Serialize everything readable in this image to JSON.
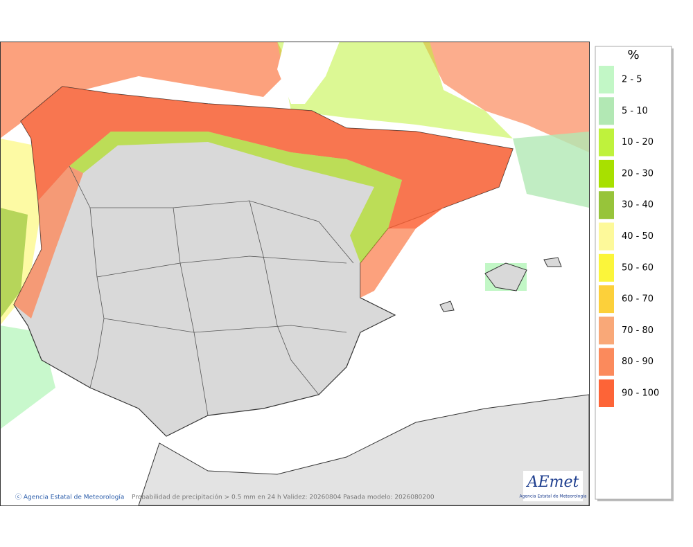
{
  "legend": {
    "title": "%",
    "items": [
      {
        "label": "2 - 5",
        "color": "#c2f7c6"
      },
      {
        "label": "5 - 10",
        "color": "#b2e8b4"
      },
      {
        "label": "10 - 20",
        "color": "#bff23c"
      },
      {
        "label": "20 - 30",
        "color": "#a8e000"
      },
      {
        "label": "30 - 40",
        "color": "#97c43a"
      },
      {
        "label": "40 - 50",
        "color": "#fdf99a"
      },
      {
        "label": "50 - 60",
        "color": "#fbf53a"
      },
      {
        "label": "60 - 70",
        "color": "#fcd03a"
      },
      {
        "label": "70 - 80",
        "color": "#f9a878"
      },
      {
        "label": "80 - 90",
        "color": "#fb8a5c"
      },
      {
        "label": "90 - 100",
        "color": "#fd6437"
      }
    ]
  },
  "footer": {
    "copyright": "ⓒ Agencia Estatal de Meteorología",
    "caption": "Probabilidad de precipitación > 0.5 mm en 24 h Validez: 20260804 Pasada modelo: 2026080200"
  },
  "logo": {
    "name": "AEmet",
    "subtitle": "Agencia Estatal de Meteorología"
  }
}
